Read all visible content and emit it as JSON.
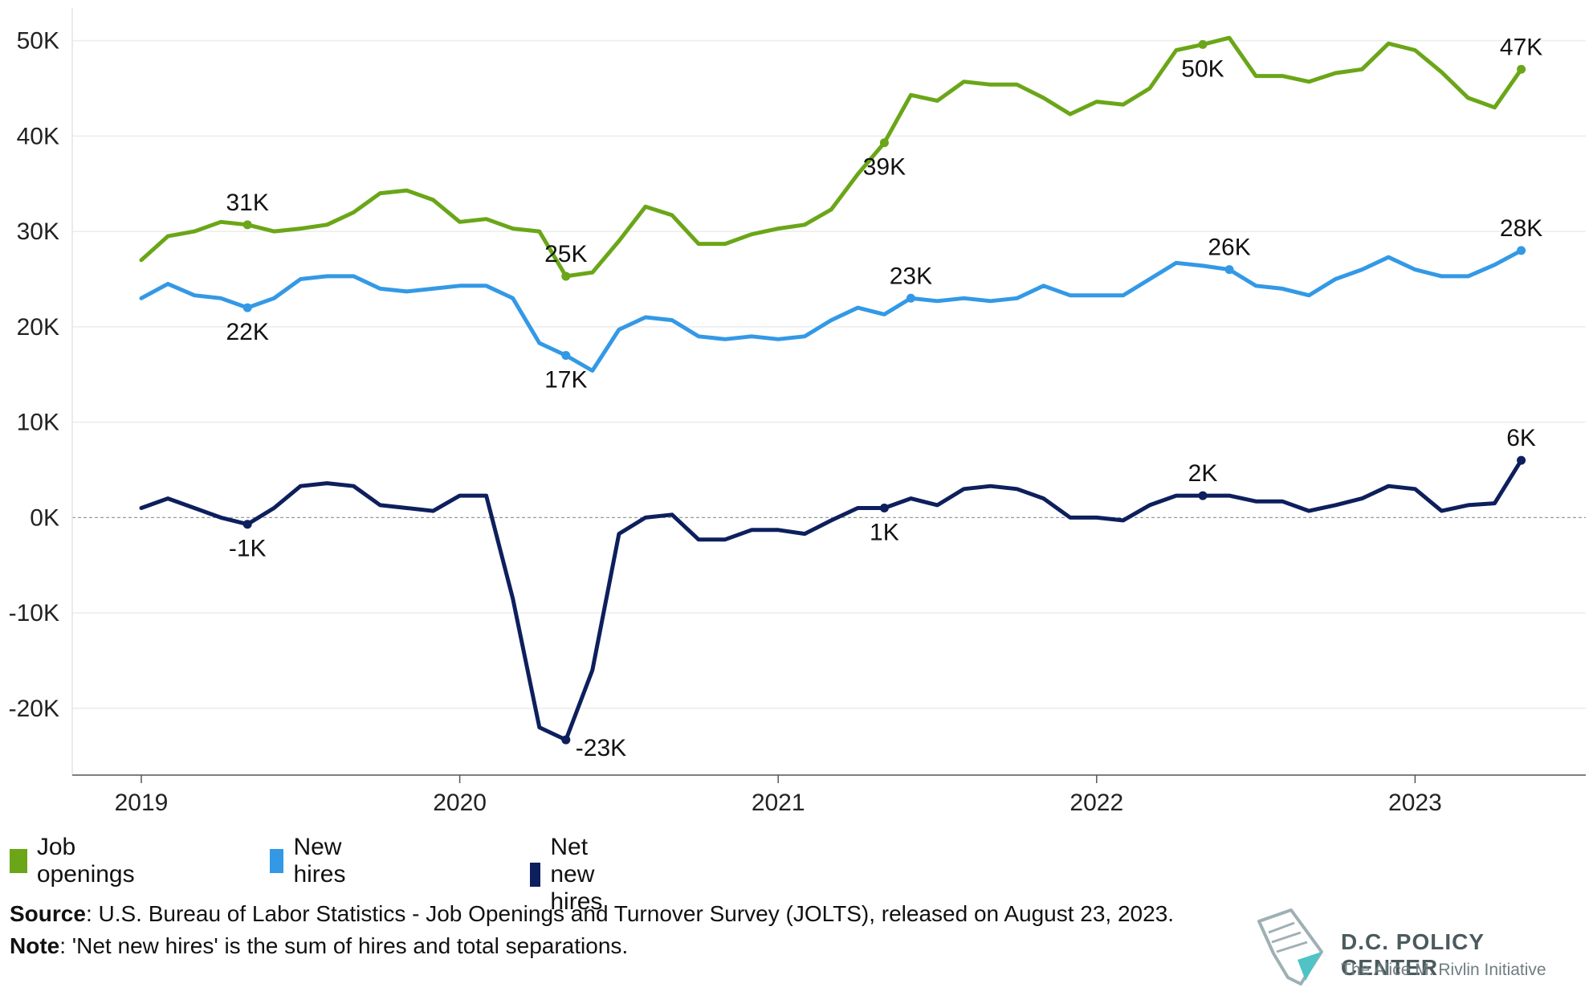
{
  "chart_data": {
    "type": "line",
    "ylim": [
      -27000,
      53000
    ],
    "yticks": [
      50000,
      40000,
      30000,
      20000,
      10000,
      0,
      -10000,
      -20000
    ],
    "ytick_labels": [
      "50K",
      "40K",
      "30K",
      "20K",
      "10K",
      "0K",
      "-10K",
      "-20K"
    ],
    "xticks": [
      "2019",
      "2020",
      "2021",
      "2022",
      "2023"
    ],
    "x_start": "2019-01",
    "colors": {
      "job_openings": "#6aa618",
      "new_hires": "#3399e6",
      "net_new_hires": "#0d1f5c"
    },
    "series": [
      {
        "name": "Job openings",
        "key": "job_openings",
        "values": [
          27000,
          29500,
          30000,
          31000,
          30700,
          30000,
          30300,
          30700,
          32000,
          34000,
          34300,
          33300,
          31000,
          31300,
          30300,
          30000,
          25300,
          25700,
          29000,
          32600,
          31700,
          28700,
          28700,
          29700,
          30300,
          30700,
          32300,
          36000,
          39300,
          44300,
          43700,
          45700,
          45400,
          45400,
          44000,
          42300,
          43600,
          43300,
          45000,
          49000,
          49600,
          50300,
          46300,
          46300,
          45700,
          46600,
          47000,
          49700,
          49000,
          46700,
          44000,
          43000,
          47000
        ],
        "annotations": [
          {
            "month": "2019-05",
            "label": "31K",
            "pos": "above"
          },
          {
            "month": "2020-05",
            "label": "25K",
            "pos": "above"
          },
          {
            "month": "2021-05",
            "label": "39K",
            "pos": "below"
          },
          {
            "month": "2022-05",
            "label": "50K",
            "pos": "below"
          },
          {
            "month": "2023-05",
            "label": "47K",
            "pos": "above"
          }
        ]
      },
      {
        "name": "New hires",
        "key": "new_hires",
        "values": [
          23000,
          24500,
          23300,
          23000,
          22000,
          23000,
          25000,
          25300,
          25300,
          24000,
          23700,
          24000,
          24300,
          24300,
          23000,
          18300,
          17000,
          15400,
          19700,
          21000,
          20700,
          19000,
          18700,
          19000,
          18700,
          19000,
          20700,
          22000,
          21300,
          23000,
          22700,
          23000,
          22700,
          23000,
          24300,
          23300,
          23300,
          23300,
          25000,
          26700,
          26400,
          26000,
          24300,
          24000,
          23300,
          25000,
          26000,
          27300,
          26000,
          25300,
          25300,
          26500,
          28000
        ],
        "annotations": [
          {
            "month": "2019-05",
            "label": "22K",
            "pos": "below"
          },
          {
            "month": "2020-05",
            "label": "17K",
            "pos": "below"
          },
          {
            "month": "2021-06",
            "label": "23K",
            "pos": "above"
          },
          {
            "month": "2022-06",
            "label": "26K",
            "pos": "above"
          },
          {
            "month": "2023-05",
            "label": "28K",
            "pos": "above"
          }
        ]
      },
      {
        "name": "Net new hires",
        "key": "net_new_hires",
        "values": [
          1000,
          2000,
          1000,
          0,
          -700,
          1000,
          3300,
          3600,
          3300,
          1300,
          1000,
          700,
          2300,
          2300,
          -8500,
          -22000,
          -23300,
          -16000,
          -1700,
          0,
          300,
          -2300,
          -2300,
          -1300,
          -1300,
          -1700,
          -300,
          1000,
          1000,
          2000,
          1300,
          3000,
          3300,
          3000,
          2000,
          0,
          0,
          -300,
          1300,
          2300,
          2300,
          2300,
          1700,
          1700,
          700,
          1300,
          2000,
          3300,
          3000,
          700,
          1300,
          1500,
          6000
        ],
        "annotations": [
          {
            "month": "2019-05",
            "label": "-1K",
            "pos": "below"
          },
          {
            "month": "2020-05",
            "label": "-23K",
            "pos": "right"
          },
          {
            "month": "2021-05",
            "label": "1K",
            "pos": "below"
          },
          {
            "month": "2022-05",
            "label": "2K",
            "pos": "above"
          },
          {
            "month": "2023-05",
            "label": "6K",
            "pos": "above"
          }
        ]
      }
    ]
  },
  "legend": [
    {
      "label": "Job openings",
      "color": "#6aa618"
    },
    {
      "label": "New hires",
      "color": "#3399e6"
    },
    {
      "label": "Net new hires",
      "color": "#0d1f5c"
    }
  ],
  "footer": {
    "source_label": "Source",
    "source_text": ": U.S. Bureau of Labor Statistics - Job Openings and Turnover Survey (JOLTS), released on August 23, 2023.",
    "note_label": "Note",
    "note_text": ": 'Net new hires' is the sum of hires and total separations."
  },
  "logo": {
    "title": "D.C. POLICY CENTER",
    "subtitle": "The Alice M. Rivlin Initiative"
  }
}
